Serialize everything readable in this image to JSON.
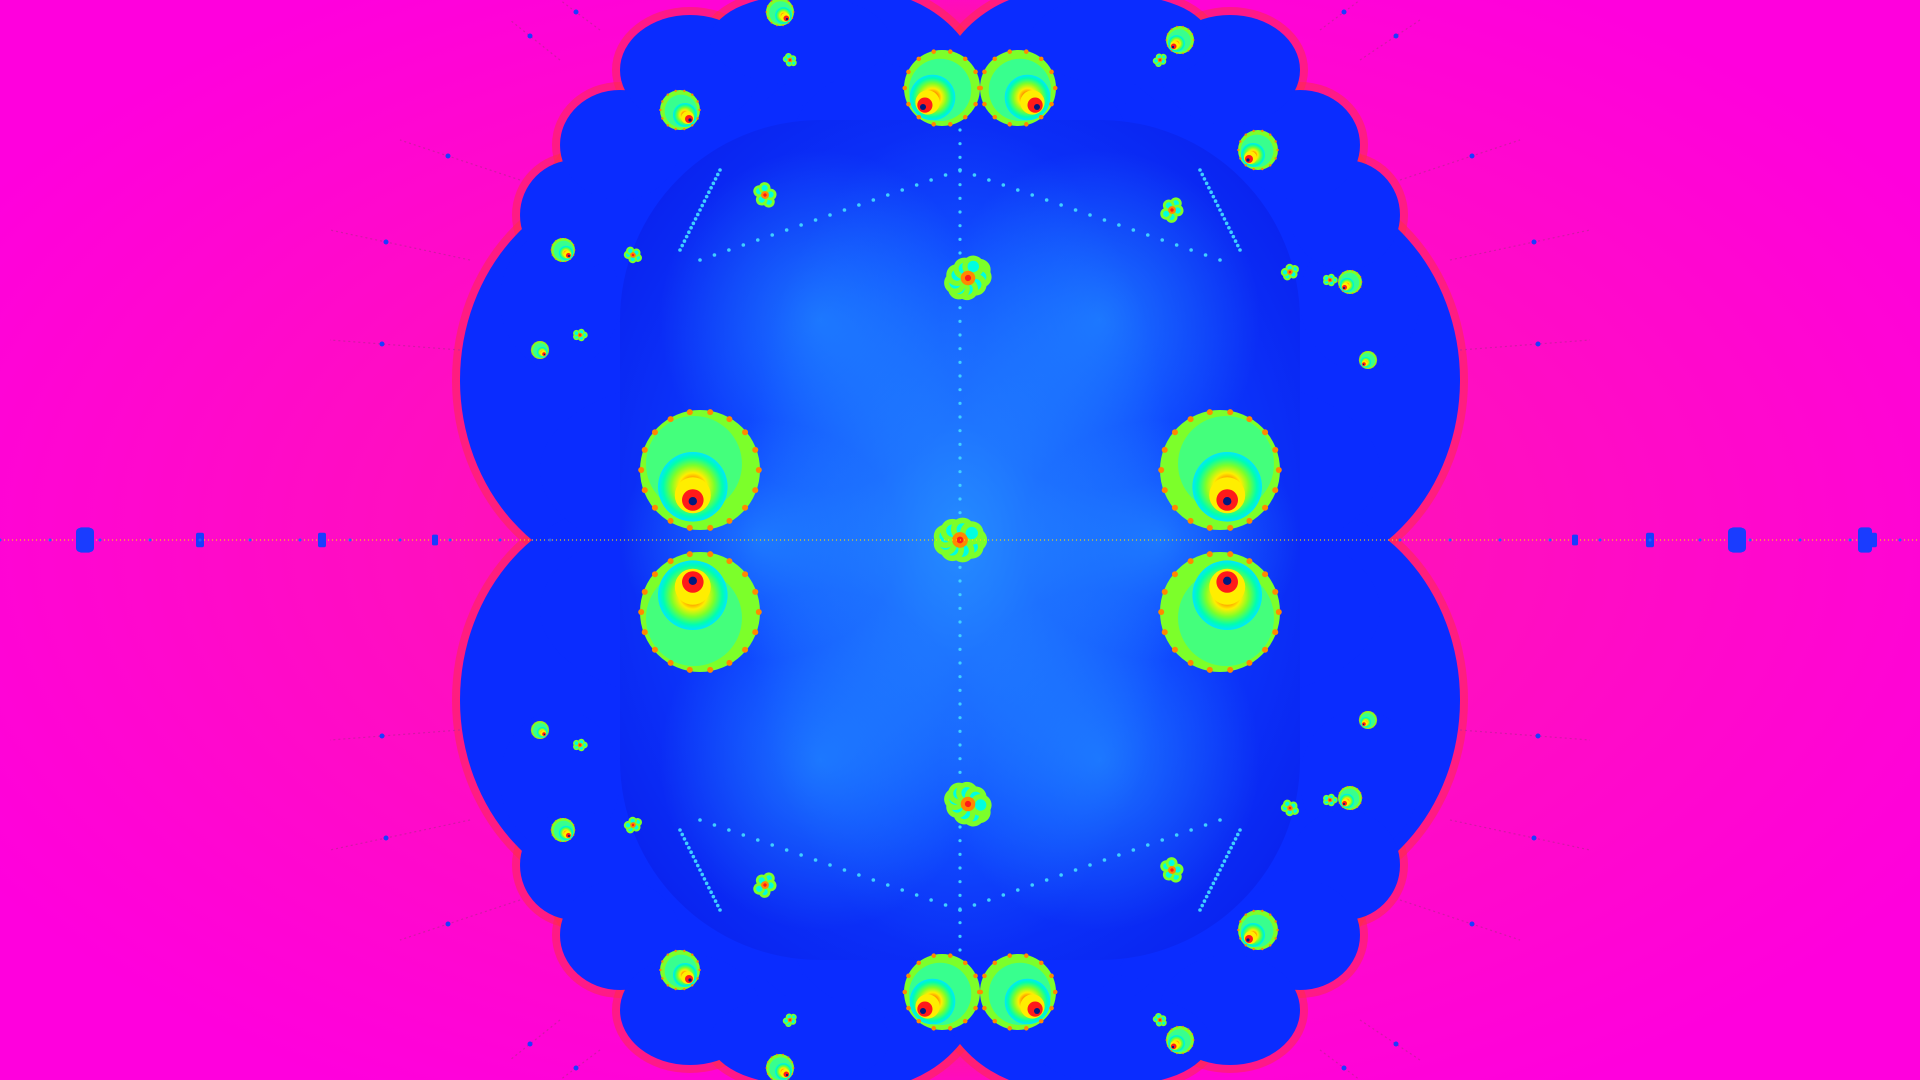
{
  "image": {
    "subject": "fractal",
    "colors": {
      "exterior": "#ff00cc",
      "exterior_edge": "#ff2a7a",
      "interior": "#0a2cff",
      "interior_glow": "#1e8cff",
      "cyan": "#00ffe0",
      "green": "#7cff2a",
      "yellow": "#ffee00",
      "orange": "#ff8800",
      "red": "#ff1a1a",
      "dark": "#001a80"
    }
  }
}
